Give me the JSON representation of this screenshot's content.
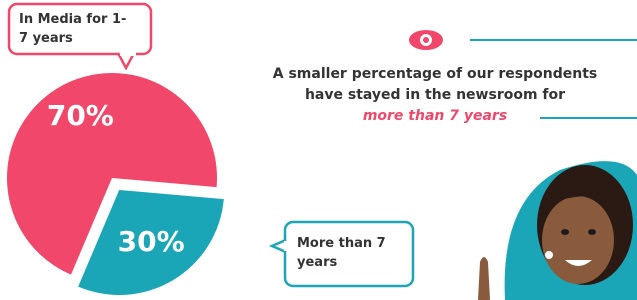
{
  "chart_data": {
    "type": "pie",
    "categories": [
      "In Media for 1-7 years",
      "More than 7 years"
    ],
    "values": [
      70,
      30
    ],
    "value_labels": [
      "70%",
      "30%"
    ],
    "colors": [
      "#f0476a",
      "#1aa6b7"
    ],
    "annotation": [
      "A smaller percentage of our respondents",
      "have stayed in the newsroom for"
    ],
    "annotation_emphasis": "more than 7 years"
  }
}
